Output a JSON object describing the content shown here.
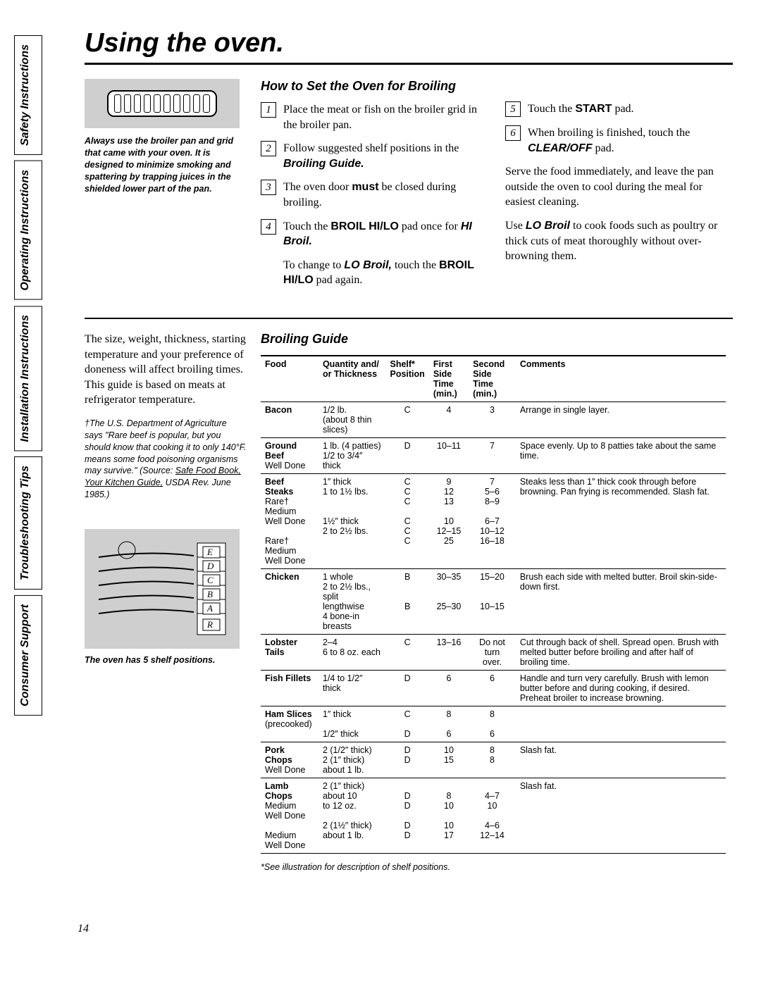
{
  "page": {
    "title": "Using the oven.",
    "page_number": "14"
  },
  "sidebar": {
    "tabs": [
      "Safety Instructions",
      "Operating Instructions",
      "Installation Instructions",
      "Troubleshooting Tips",
      "Consumer Support"
    ]
  },
  "how_to": {
    "heading": "How to Set the Oven for Broiling",
    "pan_caption": "Always use the broiler pan and grid that came with your oven. It is designed to minimize smoking and spattering by trapping juices in the shielded lower part of the pan.",
    "steps_left": [
      {
        "n": "1",
        "text": "Place the meat or fish on the broiler grid in the broiler pan."
      },
      {
        "n": "2",
        "html": "Follow suggested shelf positions in the <span class='ital-bold-sans'>Broiling Guide.</span>"
      },
      {
        "n": "3",
        "html": "The oven door <span class='bold-sans'>must</span> be closed during broiling."
      },
      {
        "n": "4",
        "html": "Touch the <span class='bold-sans'>BROIL HI/LO</span> pad once for <span class='ital-bold-sans'>HI Broil.</span>"
      }
    ],
    "change_to": "To change to <span class='ital-bold-sans'>LO Broil,</span> touch the <span class='bold-sans'>BROIL HI/LO</span> pad again.",
    "steps_right": [
      {
        "n": "5",
        "html": "Touch the <span class='bold-sans'>START</span> pad."
      },
      {
        "n": "6",
        "html": "When broiling is finished, touch the <span class='ital-bold-sans'>CLEAR/OFF</span> pad."
      }
    ],
    "serve_text": "Serve the food immediately, and leave the pan outside the oven to cool during the meal for easiest cleaning.",
    "lo_text": "Use <span class='ital-bold-sans'>LO Broil</span> to cook foods such as poultry or thick cuts of meat thoroughly without over-browning them."
  },
  "broiling": {
    "heading": "Broiling Guide",
    "intro": "The size, weight, thickness, starting temperature and your preference of doneness will affect broiling times. This guide is based on meats at refrigerator temperature.",
    "usda": "†The U.S. Department of Agriculture says \"Rare beef is popular, but you should know that cooking it to only 140°F. means some food poisoning organisms may survive.\" (Source: <u>Safe Food Book, Your Kitchen Guide,</u> USDA Rev. June 1985.)",
    "shelf_caption": "The oven has 5 shelf positions.",
    "footnote": "*See illustration for description of shelf positions.",
    "headers": [
      "Food",
      "Quantity and/\nor Thickness",
      "Shelf*\nPosition",
      "First Side\nTime (min.)",
      "Second Side\nTime (min.)",
      "Comments"
    ],
    "rows": [
      {
        "food": "Bacon",
        "sub": "",
        "qty": "1/2 lb.\n(about 8 thin slices)",
        "shelf": "C",
        "t1": "4",
        "t2": "3",
        "comments": "Arrange in single layer."
      },
      {
        "food": "Ground Beef",
        "sub": "Well Done",
        "qty": "1 lb. (4 patties)\n1/2 to 3/4″ thick",
        "shelf": "D",
        "t1": "10–11",
        "t2": "7",
        "comments": "Space evenly. Up to 8 patties take about the same time."
      },
      {
        "food": "Beef Steaks",
        "sub": "Rare†\nMedium\nWell Done\n\nRare†\nMedium\nWell Done",
        "qty": "1″ thick\n1 to 1½ lbs.\n\n\n1½″ thick\n2 to 2½ lbs.",
        "shelf": "C\nC\nC\n\nC\nC\nC",
        "t1": "9\n12\n13\n\n10\n12–15\n25",
        "t2": "7\n5–6\n8–9\n\n6–7\n10–12\n16–18",
        "comments": "Steaks less than 1″ thick cook through before browning. Pan frying is recommended. Slash fat."
      },
      {
        "food": "Chicken",
        "sub": "",
        "qty": "1 whole\n2 to 2½ lbs.,\nsplit lengthwise\n4 bone-in breasts",
        "shelf": "B\n\n\nB",
        "t1": "30–35\n\n\n25–30",
        "t2": "15–20\n\n\n10–15",
        "comments": "Brush each side with melted butter. Broil skin-side-down first."
      },
      {
        "food": "Lobster Tails",
        "sub": "",
        "qty": "2–4\n6 to 8 oz. each",
        "shelf": "C",
        "t1": "13–16",
        "t2": "Do not\nturn\nover.",
        "comments": "Cut through back of shell. Spread open. Brush with melted butter before broiling and after half of broiling time."
      },
      {
        "food": "Fish Fillets",
        "sub": "",
        "qty": "1/4 to 1/2″ thick",
        "shelf": "D",
        "t1": "6",
        "t2": "6",
        "comments": "Handle and turn very carefully. Brush with lemon butter before and during cooking, if desired. Preheat broiler to increase browning."
      },
      {
        "food": "Ham Slices",
        "sub": "(precooked)",
        "qty": "1″ thick\n\n1/2″ thick",
        "shelf": "C\n\nD",
        "t1": "8\n\n6",
        "t2": "8\n\n6",
        "comments": ""
      },
      {
        "food": "Pork Chops",
        "sub": "Well Done",
        "qty": "2 (1/2″ thick)\n2 (1″ thick) about 1 lb.",
        "shelf": "D\nD",
        "t1": "10\n15",
        "t2": "8\n8",
        "comments": "Slash fat."
      },
      {
        "food": "Lamb Chops",
        "sub": "Medium\nWell Done\n\nMedium\nWell Done",
        "qty": "2 (1″ thick) about 10\nto 12 oz.\n\n2 (1½″ thick) about 1 lb.",
        "shelf": "\nD\nD\n\nD\nD",
        "t1": "\n8\n10\n\n10\n17",
        "t2": "\n4–7\n10\n\n4–6\n12–14",
        "comments": "Slash fat."
      }
    ]
  },
  "colors": {
    "background": "#ffffff",
    "text": "#000000",
    "gray_box": "#cfcfcf"
  }
}
